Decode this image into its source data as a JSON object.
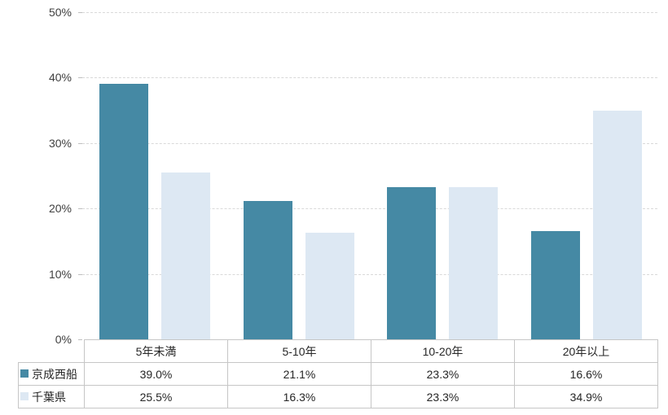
{
  "chart_data": {
    "type": "bar",
    "title": "",
    "xlabel": "",
    "ylabel": "",
    "categories": [
      "5年未満",
      "5-10年",
      "10-20年",
      "20年以上"
    ],
    "series": [
      {
        "name": "京成西船",
        "color": "#4589A4",
        "values": [
          39.0,
          21.1,
          23.3,
          16.6
        ]
      },
      {
        "name": "千葉県",
        "color": "#DDE8F3",
        "values": [
          25.5,
          16.3,
          23.3,
          34.9
        ]
      }
    ],
    "ylim": [
      0,
      50
    ],
    "ytick_step": 10,
    "ytick_labels": [
      "0%",
      "10%",
      "20%",
      "30%",
      "40%",
      "50%"
    ],
    "grid": true,
    "legend_position": "data-table-left",
    "value_suffix": "%",
    "value_decimals": 1,
    "table_values": [
      [
        "39.0%",
        "21.1%",
        "23.3%",
        "16.6%"
      ],
      [
        "25.5%",
        "16.3%",
        "23.3%",
        "34.9%"
      ]
    ]
  },
  "colors": {
    "background": "#FFFFFF",
    "gridline": "#D9D9D9",
    "axis_tick": "#BFBFBF",
    "axis_text": "#404040",
    "table_border": "#C6C6C6",
    "table_text": "#262626"
  }
}
